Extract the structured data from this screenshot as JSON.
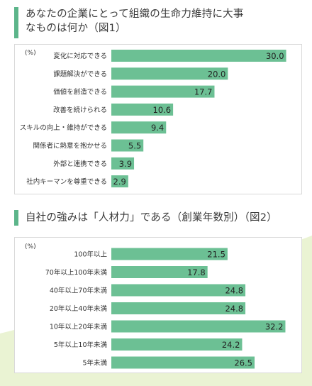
{
  "colors": {
    "accent": "#5cb58a",
    "bar": "#6cc094",
    "background_deco": "#eaf3d3"
  },
  "chart_data": [
    {
      "type": "bar",
      "orientation": "horizontal",
      "title": "あなたの企業にとって組織の生命力維持に大事なものは何か（図1）",
      "unit": "(%)",
      "categories": [
        "変化に対応できる",
        "課題解決ができる",
        "価値を創造できる",
        "改善を続けられる",
        "スキルの向上・維持ができる",
        "関係者に熱意を抱かせる",
        "外部と連携できる",
        "社内キーマンを尊重できる"
      ],
      "values": [
        30.0,
        20.0,
        17.7,
        10.6,
        9.4,
        5.5,
        3.9,
        2.9
      ],
      "value_labels": [
        "30.0",
        "20.0",
        "17.7",
        "10.6",
        "9.4",
        "5.5",
        "3.9",
        "2.9"
      ],
      "xlim": [
        0,
        32
      ],
      "grid": false,
      "legend": "none"
    },
    {
      "type": "bar",
      "orientation": "horizontal",
      "title": "自社の強みは「人材力」である（創業年数別）（図2）",
      "unit": "(%)",
      "categories": [
        "100年以上",
        "70年以上100年未満",
        "40年以上70年未満",
        "20年以上40年未満",
        "10年以上20年未満",
        "5年以上10年未満",
        "5年未満"
      ],
      "values": [
        21.5,
        17.8,
        24.8,
        24.8,
        32.2,
        24.2,
        26.5
      ],
      "value_labels": [
        "21.5",
        "17.8",
        "24.8",
        "24.8",
        "32.2",
        "24.2",
        "26.5"
      ],
      "xlim": [
        0,
        34.5
      ],
      "grid": false,
      "legend": "none"
    }
  ]
}
